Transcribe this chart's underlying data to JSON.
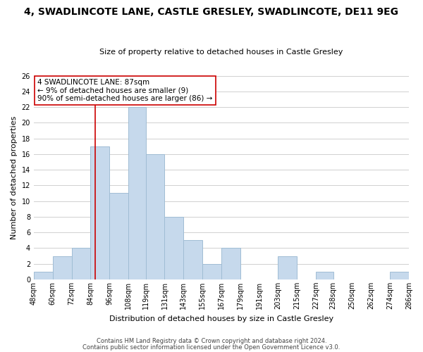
{
  "title": "4, SWADLINCOTE LANE, CASTLE GRESLEY, SWADLINCOTE, DE11 9EG",
  "subtitle": "Size of property relative to detached houses in Castle Gresley",
  "xlabel": "Distribution of detached houses by size in Castle Gresley",
  "ylabel": "Number of detached properties",
  "bar_color": "#c6d9ec",
  "bar_edge_color": "#a0bdd4",
  "bin_edges": [
    48,
    60,
    72,
    84,
    96,
    108,
    119,
    131,
    143,
    155,
    167,
    179,
    191,
    203,
    215,
    227,
    238,
    250,
    262,
    274,
    286
  ],
  "bin_labels": [
    "48sqm",
    "60sqm",
    "72sqm",
    "84sqm",
    "96sqm",
    "108sqm",
    "119sqm",
    "131sqm",
    "143sqm",
    "155sqm",
    "167sqm",
    "179sqm",
    "191sqm",
    "203sqm",
    "215sqm",
    "227sqm",
    "238sqm",
    "250sqm",
    "262sqm",
    "274sqm",
    "286sqm"
  ],
  "counts": [
    1,
    3,
    4,
    17,
    11,
    22,
    16,
    8,
    5,
    2,
    4,
    0,
    0,
    3,
    0,
    1,
    0,
    0,
    0,
    1
  ],
  "ylim": [
    0,
    26
  ],
  "yticks": [
    0,
    2,
    4,
    6,
    8,
    10,
    12,
    14,
    16,
    18,
    20,
    22,
    24,
    26
  ],
  "property_line_x": 87,
  "annotation_title": "4 SWADLINCOTE LANE: 87sqm",
  "annotation_line1": "← 9% of detached houses are smaller (9)",
  "annotation_line2": "90% of semi-detached houses are larger (86) →",
  "footer1": "Contains HM Land Registry data © Crown copyright and database right 2024.",
  "footer2": "Contains public sector information licensed under the Open Government Licence v3.0.",
  "grid_color": "#d0d0d0",
  "property_line_color": "#cc0000",
  "background_color": "#ffffff",
  "title_fontsize": 10,
  "subtitle_fontsize": 8,
  "ylabel_fontsize": 8,
  "xlabel_fontsize": 8,
  "tick_fontsize": 7,
  "annotation_fontsize": 7.5,
  "footer_fontsize": 6
}
